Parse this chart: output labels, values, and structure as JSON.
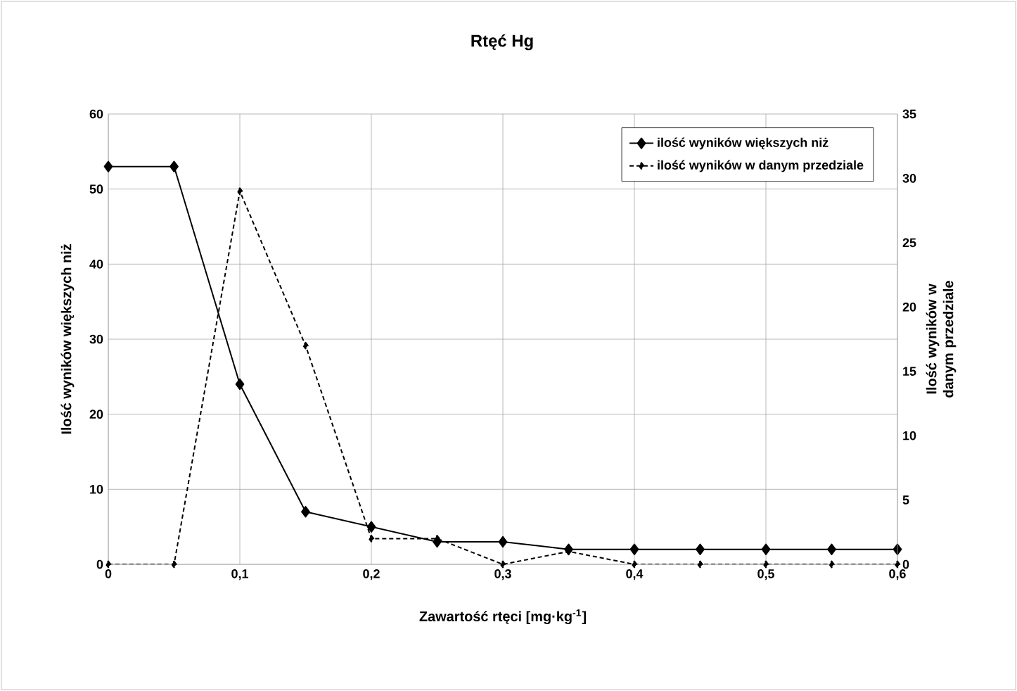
{
  "chart_data": {
    "type": "line",
    "title": "Rtęć Hg",
    "xlabel": "Zawartość  rtęci [mg·kg$^{-1}$]",
    "ylabel": "Ilość wyników większych niż",
    "y2label": "Ilość wyników w danym przedziale",
    "x": [
      0,
      0.05,
      0.1,
      0.15,
      0.2,
      0.25,
      0.3,
      0.35,
      0.4,
      0.45,
      0.5,
      0.55,
      0.6
    ],
    "series": [
      {
        "name": "ilość wyników większych niż",
        "color": "#000000",
        "line_style": "solid",
        "values": [
          53,
          53,
          24,
          7,
          5,
          3,
          3,
          2,
          2,
          2,
          2,
          2,
          2
        ]
      },
      {
        "name": "ilość wyników w danym przedziale",
        "color": "#000000",
        "line_style": "dotted",
        "axis": "y2",
        "values": [
          0,
          0,
          29,
          17,
          2,
          2,
          0,
          1,
          0,
          0,
          0,
          0,
          0
        ]
      }
    ],
    "xlim": [
      0,
      0.6
    ],
    "xticks": [
      0,
      {
        "value": 0.1,
        "label": "0,1"
      },
      {
        "value": 0.2,
        "label": "0,2"
      },
      {
        "value": 0.3,
        "label": "0,3"
      },
      {
        "value": 0.4,
        "label": "0,4"
      },
      {
        "value": 0.5,
        "label": "0,5"
      },
      {
        "value": 0.6,
        "label": "0,6"
      }
    ],
    "ylim": [
      0,
      60
    ],
    "yticks": [
      0,
      10,
      20,
      30,
      40,
      50,
      60
    ],
    "y2lim": [
      0,
      35
    ],
    "y2ticks": [
      0,
      5,
      10,
      15,
      20,
      25,
      30,
      35
    ],
    "grid": true,
    "legend": "top right",
    "marker": "diamond"
  }
}
